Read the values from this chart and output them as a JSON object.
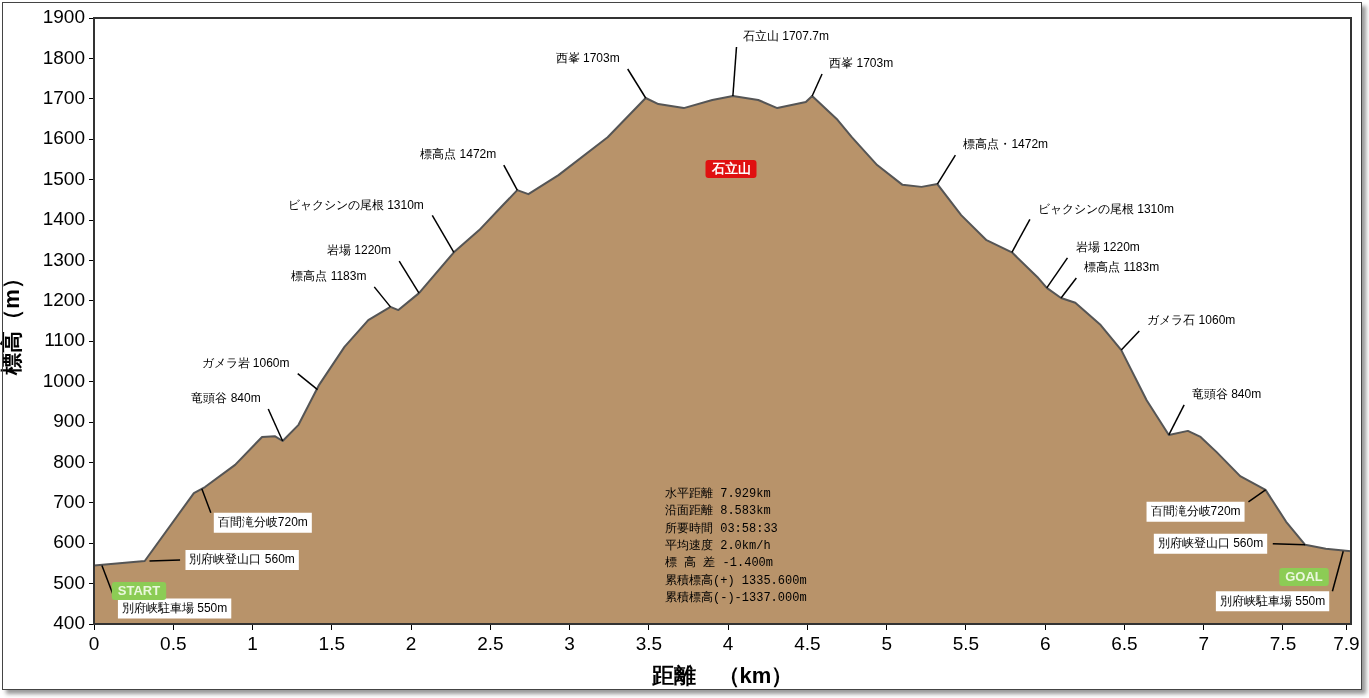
{
  "chart_data": {
    "type": "area",
    "xlabel": "距離　（km）",
    "ylabel": "標高（m）",
    "x": [
      0,
      0.32,
      0.63,
      0.7,
      0.89,
      1.06,
      1.14,
      1.19,
      1.29,
      1.42,
      1.58,
      1.73,
      1.87,
      1.92,
      2.05,
      2.27,
      2.43,
      2.58,
      2.67,
      2.74,
      2.93,
      3.24,
      3.48,
      3.56,
      3.72,
      3.9,
      4.03,
      4.19,
      4.31,
      4.49,
      4.53,
      4.69,
      4.78,
      4.94,
      5.1,
      5.22,
      5.32,
      5.47,
      5.63,
      5.79,
      5.95,
      6.01,
      6.1,
      6.19,
      6.35,
      6.48,
      6.64,
      6.78,
      6.9,
      6.98,
      7.08,
      7.23,
      7.39,
      7.52,
      7.64,
      7.77,
      7.929
    ],
    "series": [
      {
        "color": "#b8936a",
        "values": [
          545,
          556,
          724,
          739,
          794,
          863,
          865,
          853,
          893,
          992,
          1086,
          1152,
          1185,
          1177,
          1219,
          1320,
          1375,
          1437,
          1474,
          1464,
          1511,
          1605,
          1702,
          1687,
          1677,
          1697,
          1707,
          1697,
          1677,
          1692,
          1707,
          1648,
          1605,
          1536,
          1487,
          1482,
          1489,
          1412,
          1350,
          1320,
          1259,
          1232,
          1207,
          1195,
          1140,
          1078,
          954,
          868,
          878,
          863,
          826,
          766,
          732,
          653,
          596,
          586,
          580
        ]
      }
    ],
    "xlim": [
      0,
      7.929
    ],
    "xticks": [
      0,
      0.5,
      1,
      1.5,
      2,
      2.5,
      3,
      3.5,
      4,
      4.5,
      5,
      5.5,
      6,
      6.5,
      7,
      7.5,
      7.9
    ],
    "ylim": [
      400,
      1900
    ],
    "yticks": [
      400,
      500,
      600,
      700,
      800,
      900,
      1000,
      1100,
      1200,
      1300,
      1400,
      1500,
      1600,
      1700,
      1800,
      1900
    ],
    "grid": false,
    "legend": false,
    "annotations": [
      {
        "text": "別府峡駐車場 550m",
        "x": 0.05,
        "y": 545
      },
      {
        "text": "別府峡登山口 560m",
        "x": 0.35,
        "y": 556
      },
      {
        "text": "百間滝分岐720m",
        "x": 0.68,
        "y": 735
      },
      {
        "text": "竜頭谷 840m",
        "x": 1.19,
        "y": 853
      },
      {
        "text": "ガメラ岩 1060m",
        "x": 1.41,
        "y": 980
      },
      {
        "text": "標高点 1183m",
        "x": 1.87,
        "y": 1185
      },
      {
        "text": "岩場 1220m",
        "x": 2.05,
        "y": 1219
      },
      {
        "text": "ビャクシンの尾根 1310m",
        "x": 2.27,
        "y": 1320
      },
      {
        "text": "標高点 1472m",
        "x": 2.67,
        "y": 1474
      },
      {
        "text": "西峯 1703m",
        "x": 3.48,
        "y": 1702
      },
      {
        "text": "石立山 1707.7m",
        "x": 4.03,
        "y": 1707
      },
      {
        "text": "西峯 1703m",
        "x": 4.53,
        "y": 1707
      },
      {
        "text": "標高点・1472m",
        "x": 5.32,
        "y": 1489
      },
      {
        "text": "ビャクシンの尾根 1310m",
        "x": 5.79,
        "y": 1320
      },
      {
        "text": "岩場 1220m",
        "x": 6.01,
        "y": 1232
      },
      {
        "text": "標高点 1183m",
        "x": 6.1,
        "y": 1207
      },
      {
        "text": "ガメラ石 1060m",
        "x": 6.48,
        "y": 1078
      },
      {
        "text": "竜頭谷 840m",
        "x": 6.78,
        "y": 868
      },
      {
        "text": "百間滝分岐720m",
        "x": 7.39,
        "y": 732
      },
      {
        "text": "別府峡登山口 560m",
        "x": 7.64,
        "y": 596
      },
      {
        "text": "別府峡駐車場 550m",
        "x": 7.88,
        "y": 580
      },
      "石立山",
      "START",
      "GOAL",
      "水平距離 7.929km",
      "沿面距離 8.583km",
      "所要時間 03:58:33",
      "平均速度 2.0km/h",
      "標 高 差 -1.400m",
      "累積標高(+) 1335.600m",
      "累積標高(-)-1337.000m"
    ]
  }
}
